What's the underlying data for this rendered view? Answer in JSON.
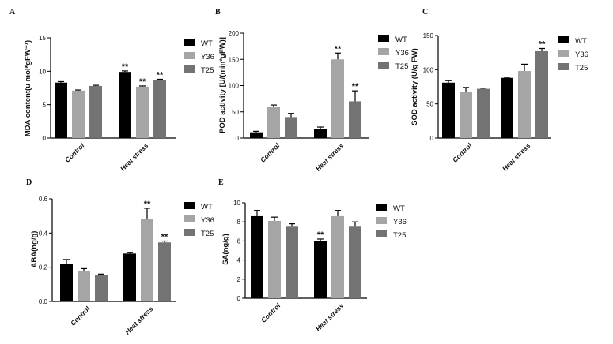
{
  "figure": {
    "colors": {
      "WT": "#000000",
      "Y36": "#a5a5a5",
      "T25": "#737373"
    }
  },
  "chart_data": [
    {
      "type": "bar",
      "panel": "A",
      "ylabel": "MDA content(u mol*gFW⁻¹)",
      "ylim": [
        0,
        15
      ],
      "yticks": [
        0,
        5,
        10,
        15
      ],
      "categories": [
        "Control",
        "Heat stress"
      ],
      "legend": [
        "WT",
        "Y36",
        "T25"
      ],
      "series": [
        {
          "name": "WT",
          "values": [
            8.3,
            9.9
          ],
          "errors": [
            0.15,
            0.15
          ],
          "sig": [
            "",
            "**"
          ]
        },
        {
          "name": "Y36",
          "values": [
            7.1,
            7.7
          ],
          "errors": [
            0.1,
            0.1
          ],
          "sig": [
            "",
            "**"
          ]
        },
        {
          "name": "T25",
          "values": [
            7.8,
            8.7
          ],
          "errors": [
            0.1,
            0.1
          ],
          "sig": [
            "",
            "**"
          ]
        }
      ]
    },
    {
      "type": "bar",
      "panel": "B",
      "ylabel": "POD activity [U/(min*gFW)]",
      "ylim": [
        0,
        200
      ],
      "yticks": [
        0,
        50,
        100,
        150,
        200
      ],
      "categories": [
        "Control",
        "Heat stress"
      ],
      "legend": [
        "WT",
        "Y36",
        "T25"
      ],
      "series": [
        {
          "name": "WT",
          "values": [
            11,
            18
          ],
          "errors": [
            2,
            3
          ],
          "sig": [
            "",
            ""
          ]
        },
        {
          "name": "Y36",
          "values": [
            60,
            150
          ],
          "errors": [
            3,
            12
          ],
          "sig": [
            "",
            "**"
          ]
        },
        {
          "name": "T25",
          "values": [
            40,
            70
          ],
          "errors": [
            7,
            20
          ],
          "sig": [
            "",
            "**"
          ]
        }
      ]
    },
    {
      "type": "bar",
      "panel": "C",
      "ylabel": "SOD activity (U/g FW)",
      "ylim": [
        0,
        150
      ],
      "yticks": [
        0,
        50,
        100,
        150
      ],
      "categories": [
        "Control",
        "Heat stress"
      ],
      "legend": [
        "WT",
        "Y36",
        "T25"
      ],
      "series": [
        {
          "name": "WT",
          "values": [
            81,
            88
          ],
          "errors": [
            3,
            1
          ],
          "sig": [
            "",
            ""
          ]
        },
        {
          "name": "Y36",
          "values": [
            68,
            98
          ],
          "errors": [
            6,
            10
          ],
          "sig": [
            "",
            ""
          ]
        },
        {
          "name": "T25",
          "values": [
            72,
            127
          ],
          "errors": [
            1,
            4
          ],
          "sig": [
            "",
            "**"
          ]
        }
      ]
    },
    {
      "type": "bar",
      "panel": "D",
      "ylabel": "ABA(ng/g)",
      "ylim": [
        0,
        0.6
      ],
      "yticks": [
        "0.0",
        "0.2",
        "0.4",
        "0.6"
      ],
      "categories": [
        "Control",
        "Heat stress"
      ],
      "legend": [
        "WT",
        "Y36",
        "T25"
      ],
      "series": [
        {
          "name": "WT",
          "values": [
            0.22,
            0.28
          ],
          "errors": [
            0.025,
            0.005
          ],
          "sig": [
            "",
            ""
          ]
        },
        {
          "name": "Y36",
          "values": [
            0.18,
            0.48
          ],
          "errors": [
            0.012,
            0.065
          ],
          "sig": [
            "",
            "**"
          ]
        },
        {
          "name": "T25",
          "values": [
            0.155,
            0.345
          ],
          "errors": [
            0.005,
            0.008
          ],
          "sig": [
            "",
            "**"
          ]
        }
      ]
    },
    {
      "type": "bar",
      "panel": "E",
      "ylabel": "SA(ng/g)",
      "ylim": [
        0,
        10
      ],
      "yticks": [
        0,
        2,
        4,
        6,
        8,
        10
      ],
      "categories": [
        "Control",
        "Heat stress"
      ],
      "legend": [
        "WT",
        "Y36",
        "T25"
      ],
      "series": [
        {
          "name": "WT",
          "values": [
            8.6,
            6.0
          ],
          "errors": [
            0.6,
            0.2
          ],
          "sig": [
            "",
            "**"
          ]
        },
        {
          "name": "Y36",
          "values": [
            8.1,
            8.6
          ],
          "errors": [
            0.4,
            0.6
          ],
          "sig": [
            "",
            ""
          ]
        },
        {
          "name": "T25",
          "values": [
            7.5,
            7.5
          ],
          "errors": [
            0.3,
            0.5
          ],
          "sig": [
            "",
            ""
          ]
        }
      ]
    }
  ]
}
